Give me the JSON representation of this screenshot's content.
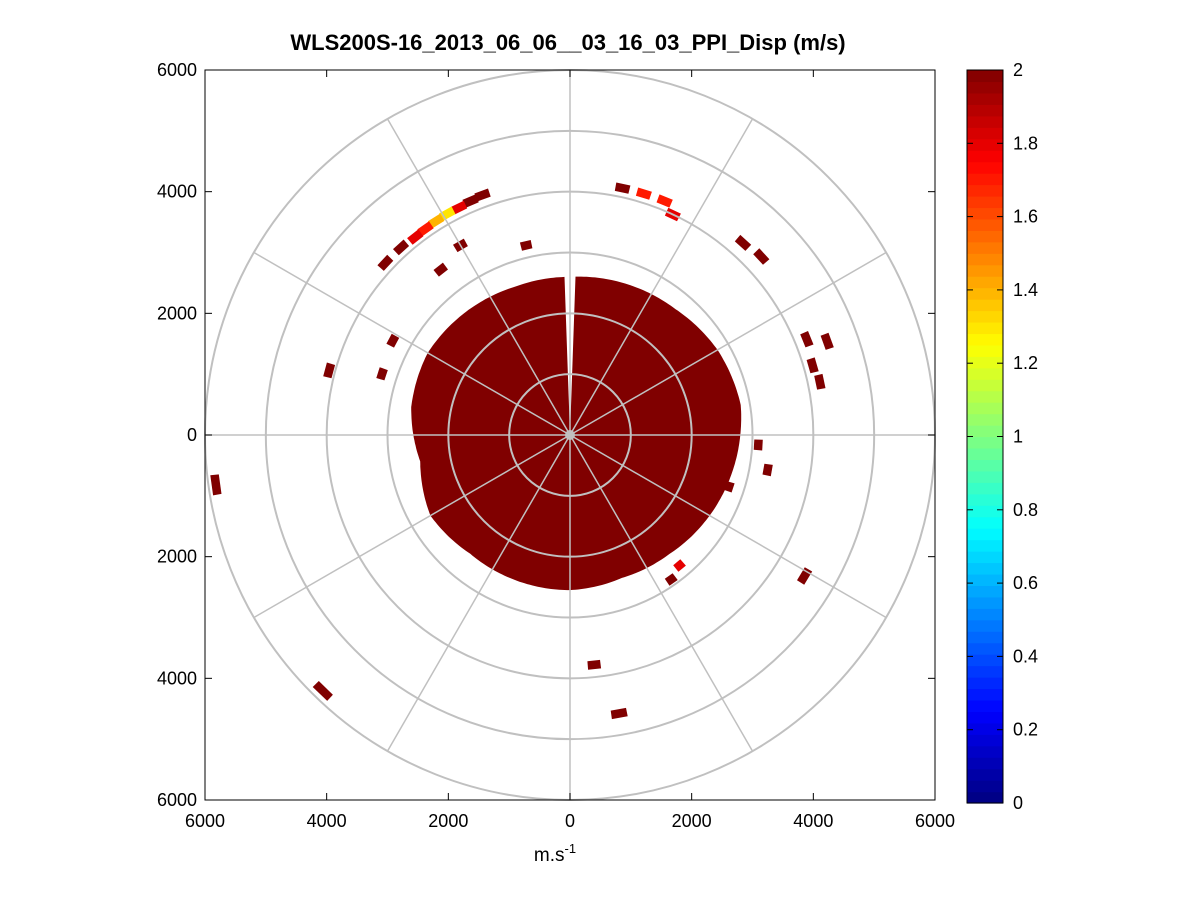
{
  "chart_data": {
    "type": "heatmap",
    "subtype": "polar-ppi",
    "title": "WLS200S-16_2013_06_06__03_16_03_PPI_Disp (m/s)",
    "xlabel": {
      "base": "m.s",
      "exponent": "-1"
    },
    "ylabel": "",
    "x_ticks": [
      "6000",
      "4000",
      "2000",
      "0",
      "2000",
      "4000",
      "6000"
    ],
    "y_ticks": [
      "6000",
      "4000",
      "2000",
      "0",
      "2000",
      "4000",
      "6000"
    ],
    "axis_range": [
      -6000,
      6000
    ],
    "range_rings_m": [
      1000,
      2000,
      3000,
      4000,
      5000,
      6000
    ],
    "spoke_step_deg": 30,
    "colorbar": {
      "colormap": "jet",
      "clim": [
        0,
        2
      ],
      "tick_labels": [
        "0",
        "0.2",
        "0.4",
        "0.6",
        "0.8",
        "1",
        "1.2",
        "1.4",
        "1.6",
        "1.8",
        "2"
      ]
    },
    "filled_region": {
      "value": 2.0,
      "radius_m_by_azimuth": [
        [
          0,
          2600
        ],
        [
          20,
          2650
        ],
        [
          40,
          2700
        ],
        [
          60,
          2800
        ],
        [
          80,
          2850
        ],
        [
          90,
          2800
        ],
        [
          100,
          2750
        ],
        [
          120,
          2650
        ],
        [
          140,
          2550
        ],
        [
          160,
          2500
        ],
        [
          180,
          2550
        ],
        [
          200,
          2550
        ],
        [
          220,
          2550
        ],
        [
          240,
          2650
        ],
        [
          260,
          2500
        ],
        [
          280,
          2650
        ],
        [
          300,
          2700
        ],
        [
          320,
          2650
        ],
        [
          340,
          2600
        ],
        [
          360,
          2600
        ]
      ],
      "gap_azimuth_deg": [
        -2,
        2
      ]
    },
    "scattered_cells": [
      {
        "az": 340,
        "r": 4200,
        "v": 2.0
      },
      {
        "az": 337,
        "r": 4180,
        "v": 2.0
      },
      {
        "az": 334,
        "r": 4160,
        "v": 1.8
      },
      {
        "az": 331,
        "r": 4160,
        "v": 1.3
      },
      {
        "az": 328,
        "r": 4150,
        "v": 1.4
      },
      {
        "az": 325,
        "r": 4140,
        "v": 1.7
      },
      {
        "az": 322,
        "r": 4130,
        "v": 1.8
      },
      {
        "az": 318,
        "r": 4150,
        "v": 2.0
      },
      {
        "az": 313,
        "r": 4150,
        "v": 2.0
      },
      {
        "az": 17,
        "r": 4150,
        "v": 1.7
      },
      {
        "az": 22,
        "r": 4150,
        "v": 1.7
      },
      {
        "az": 25,
        "r": 4000,
        "v": 1.8
      },
      {
        "az": 12,
        "r": 4150,
        "v": 2.0
      },
      {
        "az": 42,
        "r": 4250,
        "v": 2.0
      },
      {
        "az": 47,
        "r": 4300,
        "v": 2.0
      },
      {
        "az": 68,
        "r": 4200,
        "v": 2.0
      },
      {
        "az": 70,
        "r": 4500,
        "v": 2.0
      },
      {
        "az": 74,
        "r": 4150,
        "v": 2.0
      },
      {
        "az": 78,
        "r": 4200,
        "v": 2.0
      },
      {
        "az": 121,
        "r": 4500,
        "v": 2.0
      },
      {
        "az": 262,
        "r": 5880,
        "v": 2.0
      },
      {
        "az": 285,
        "r": 4100,
        "v": 2.0
      },
      {
        "az": 288,
        "r": 3250,
        "v": 2.0
      },
      {
        "az": 298,
        "r": 3300,
        "v": 2.0
      },
      {
        "az": 330,
        "r": 3600,
        "v": 2.0
      },
      {
        "az": 322,
        "r": 3450,
        "v": 2.0
      },
      {
        "az": 347,
        "r": 3200,
        "v": 2.0
      },
      {
        "az": 224,
        "r": 5850,
        "v": 2.0
      },
      {
        "az": 174,
        "r": 3800,
        "v": 2.0
      },
      {
        "az": 170,
        "r": 4650,
        "v": 2.0
      },
      {
        "az": 100,
        "r": 3300,
        "v": 2.0
      },
      {
        "az": 93,
        "r": 3100,
        "v": 2.0
      },
      {
        "az": 108,
        "r": 2750,
        "v": 2.0
      },
      {
        "az": 140,
        "r": 2800,
        "v": 1.8
      },
      {
        "az": 145,
        "r": 2900,
        "v": 2.0
      }
    ]
  }
}
